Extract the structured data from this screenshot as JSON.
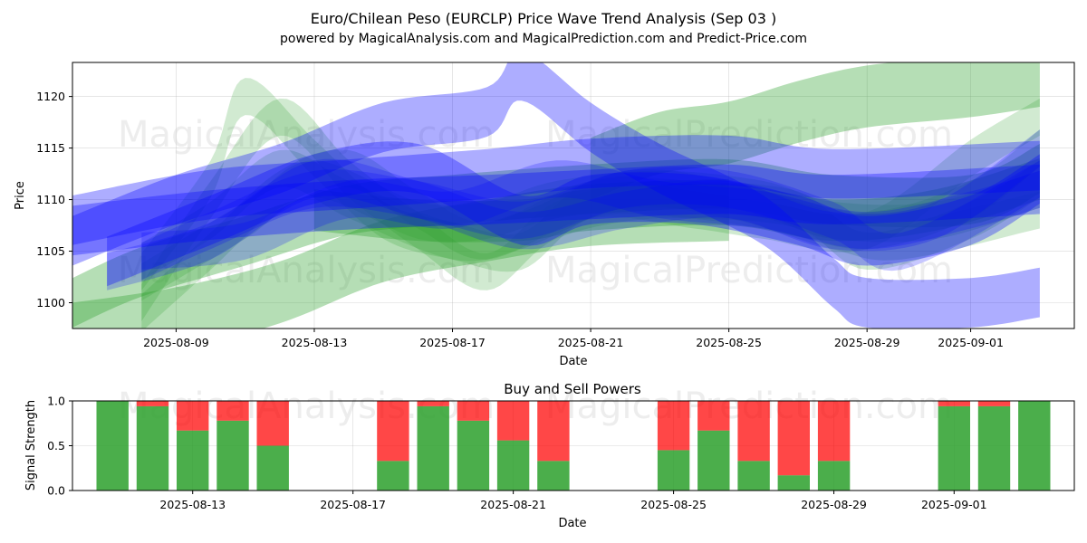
{
  "figure": {
    "title_line1": "Euro/Chilean Peso (EURCLP) Price Wave Trend Analysis (Sep 03 )",
    "title_line2": "powered by MagicalAnalysis.com and MagicalPrediction.com and Predict-Price.com",
    "watermarks": [
      "MagicalAnalysis.com",
      "MagicalPrediction.com"
    ]
  },
  "colors": {
    "green_band": "#2ca02c",
    "blue_band": "#0000ff",
    "buy": "#2ca02c",
    "sell": "#ff0000",
    "grid": "#b0b0b0"
  },
  "chart_data": [
    {
      "type": "area",
      "title": "",
      "xlabel": "Date",
      "ylabel": "Price",
      "xlim": [
        "2025-08-06",
        "2025-09-04"
      ],
      "ylim": [
        1097.5,
        1123.3
      ],
      "x_ticks": [
        "2025-08-09",
        "2025-08-13",
        "2025-08-17",
        "2025-08-21",
        "2025-08-25",
        "2025-08-29",
        "2025-09-01"
      ],
      "y_ticks": [
        1100,
        1105,
        1110,
        1115,
        1120
      ],
      "grid": true,
      "series": [
        {
          "color": "green",
          "alpha": 0.35,
          "width": 2.4,
          "points": [
            [
              "2025-08-06",
              1100
            ],
            [
              "2025-08-08",
              1103
            ],
            [
              "2025-08-11",
              1106
            ],
            [
              "2025-08-14",
              1109
            ],
            [
              "2025-08-17",
              1110
            ],
            [
              "2025-08-21",
              1111
            ],
            [
              "2025-08-25",
              1111.5
            ],
            [
              "2025-08-28",
              1110
            ],
            [
              "2025-09-01",
              1110
            ],
            [
              "2025-09-03",
              1113
            ]
          ]
        },
        {
          "color": "green",
          "alpha": 0.35,
          "width": 3.0,
          "points": [
            [
              "2025-08-06",
              1097
            ],
            [
              "2025-08-09",
              1098.5
            ],
            [
              "2025-08-12",
              1101
            ],
            [
              "2025-08-15",
              1105
            ],
            [
              "2025-08-18",
              1107
            ],
            [
              "2025-08-21",
              1108.5
            ],
            [
              "2025-08-25",
              1109
            ]
          ]
        },
        {
          "color": "green",
          "alpha": 0.35,
          "width": 3.0,
          "points": [
            [
              "2025-08-21",
              1113
            ],
            [
              "2025-08-23",
              1115.5
            ],
            [
              "2025-08-25",
              1116.5
            ],
            [
              "2025-08-27",
              1118.5
            ],
            [
              "2025-08-29",
              1120
            ],
            [
              "2025-09-01",
              1121
            ],
            [
              "2025-09-03",
              1122
            ]
          ]
        },
        {
          "color": "green",
          "alpha": 0.35,
          "width": 2.0,
          "points": [
            [
              "2025-08-13",
              1109
            ],
            [
              "2025-08-16",
              1108
            ],
            [
              "2025-08-19",
              1108
            ],
            [
              "2025-08-21",
              1109
            ],
            [
              "2025-08-25",
              1109.5
            ],
            [
              "2025-08-28",
              1108
            ],
            [
              "2025-08-31",
              1109
            ],
            [
              "2025-09-03",
              1112
            ]
          ]
        },
        {
          "color": "green",
          "alpha": 0.22,
          "width": 1.8,
          "points": [
            [
              "2025-08-08",
              1103
            ],
            [
              "2025-08-10",
              1112
            ],
            [
              "2025-08-11",
              1120
            ],
            [
              "2025-08-13",
              1114
            ],
            [
              "2025-08-15",
              1108
            ],
            [
              "2025-08-17",
              1106
            ],
            [
              "2025-08-19",
              1105
            ],
            [
              "2025-08-21",
              1110
            ],
            [
              "2025-08-24",
              1110
            ],
            [
              "2025-08-27",
              1109
            ],
            [
              "2025-08-29",
              1105
            ],
            [
              "2025-09-01",
              1108
            ],
            [
              "2025-09-03",
              1112
            ]
          ]
        },
        {
          "color": "green",
          "alpha": 0.22,
          "width": 1.8,
          "points": [
            [
              "2025-08-08",
              1100
            ],
            [
              "2025-08-10",
              1110
            ],
            [
              "2025-08-12",
              1118
            ],
            [
              "2025-08-14",
              1112
            ],
            [
              "2025-08-16",
              1107
            ],
            [
              "2025-08-18",
              1103
            ],
            [
              "2025-08-20",
              1108
            ],
            [
              "2025-08-23",
              1110
            ],
            [
              "2025-08-26",
              1109
            ],
            [
              "2025-08-29",
              1107
            ],
            [
              "2025-09-01",
              1110
            ],
            [
              "2025-09-03",
              1115
            ]
          ]
        },
        {
          "color": "green",
          "alpha": 0.22,
          "width": 1.8,
          "points": [
            [
              "2025-08-08",
              1099
            ],
            [
              "2025-08-10",
              1105
            ],
            [
              "2025-08-12",
              1111
            ],
            [
              "2025-08-14",
              1113
            ],
            [
              "2025-08-16",
              1109
            ],
            [
              "2025-08-18",
              1106
            ],
            [
              "2025-08-21",
              1110
            ],
            [
              "2025-08-24",
              1109
            ],
            [
              "2025-08-26",
              1108
            ],
            [
              "2025-08-29",
              1107
            ],
            [
              "2025-09-01",
              1114
            ],
            [
              "2025-09-03",
              1118
            ]
          ]
        },
        {
          "color": "green",
          "alpha": 0.22,
          "width": 1.8,
          "points": [
            [
              "2025-08-08",
              1102
            ],
            [
              "2025-08-11",
              1108
            ],
            [
              "2025-08-13",
              1112
            ],
            [
              "2025-08-16",
              1108
            ],
            [
              "2025-08-18",
              1108
            ],
            [
              "2025-08-20",
              1110
            ],
            [
              "2025-08-23",
              1111
            ],
            [
              "2025-08-26",
              1110
            ],
            [
              "2025-08-28",
              1108
            ],
            [
              "2025-08-31",
              1108
            ],
            [
              "2025-09-03",
              1111
            ]
          ]
        },
        {
          "color": "green",
          "alpha": 0.22,
          "width": 1.8,
          "points": [
            [
              "2025-08-08",
              1104
            ],
            [
              "2025-08-10",
              1108
            ],
            [
              "2025-08-12",
              1113
            ],
            [
              "2025-08-14",
              1110
            ],
            [
              "2025-08-17",
              1106
            ],
            [
              "2025-08-19",
              1107
            ],
            [
              "2025-08-22",
              1111
            ],
            [
              "2025-08-25",
              1110
            ],
            [
              "2025-08-28",
              1107
            ],
            [
              "2025-08-30",
              1106
            ],
            [
              "2025-09-03",
              1109
            ]
          ]
        },
        {
          "color": "blue",
          "alpha": 0.32,
          "width": 2.4,
          "points": [
            [
              "2025-08-06",
              1108
            ],
            [
              "2025-08-10",
              1110.5
            ],
            [
              "2025-08-14",
              1111.5
            ],
            [
              "2025-08-18",
              1112.5
            ],
            [
              "2025-08-21",
              1113.5
            ],
            [
              "2025-08-25",
              1113.8
            ],
            [
              "2025-08-28",
              1112.5
            ],
            [
              "2025-09-03",
              1113.3
            ]
          ]
        },
        {
          "color": "blue",
          "alpha": 0.32,
          "width": 2.4,
          "points": [
            [
              "2025-08-06",
              1106
            ],
            [
              "2025-08-09",
              1110
            ],
            [
              "2025-08-12",
              1113
            ],
            [
              "2025-08-15",
              1117
            ],
            [
              "2025-08-18",
              1118.5
            ],
            [
              "2025-08-19",
              1122
            ],
            [
              "2025-08-21",
              1117
            ],
            [
              "2025-08-23",
              1113
            ],
            [
              "2025-08-26",
              1108
            ],
            [
              "2025-08-28",
              1102
            ],
            [
              "2025-08-29",
              1100
            ],
            [
              "2025-09-01",
              1100
            ],
            [
              "2025-09-03",
              1101
            ]
          ]
        },
        {
          "color": "blue",
          "alpha": 0.32,
          "width": 2.4,
          "points": [
            [
              "2025-08-06",
              1107
            ],
            [
              "2025-08-10",
              1108.5
            ],
            [
              "2025-08-14",
              1109.5
            ],
            [
              "2025-08-18",
              1110
            ],
            [
              "2025-08-21",
              1110.5
            ],
            [
              "2025-08-25",
              1111
            ],
            [
              "2025-08-28",
              1110
            ],
            [
              "2025-09-03",
              1111
            ]
          ]
        },
        {
          "color": "blue",
          "alpha": 0.32,
          "width": 2.4,
          "points": [
            [
              "2025-08-07",
              1104
            ],
            [
              "2025-08-10",
              1108
            ],
            [
              "2025-08-13",
              1112
            ],
            [
              "2025-08-16",
              1113
            ],
            [
              "2025-08-19",
              1108
            ],
            [
              "2025-08-21",
              1110
            ],
            [
              "2025-08-24",
              1110
            ],
            [
              "2025-08-27",
              1108
            ],
            [
              "2025-08-29",
              1106
            ],
            [
              "2025-09-01",
              1108
            ],
            [
              "2025-09-03",
              1112
            ]
          ]
        },
        {
          "color": "blue",
          "alpha": 0.22,
          "width": 1.8,
          "points": [
            [
              "2025-08-08",
              1104
            ],
            [
              "2025-08-10",
              1107
            ],
            [
              "2025-08-13",
              1111
            ],
            [
              "2025-08-16",
              1110
            ],
            [
              "2025-08-19",
              1108
            ],
            [
              "2025-08-22",
              1111
            ],
            [
              "2025-08-25",
              1111
            ],
            [
              "2025-08-28",
              1108
            ],
            [
              "2025-08-30",
              1105
            ],
            [
              "2025-09-03",
              1112
            ]
          ]
        },
        {
          "color": "blue",
          "alpha": 0.22,
          "width": 1.8,
          "points": [
            [
              "2025-08-08",
              1105
            ],
            [
              "2025-08-11",
              1106
            ],
            [
              "2025-08-14",
              1110
            ],
            [
              "2025-08-17",
              1109
            ],
            [
              "2025-08-20",
              1112
            ],
            [
              "2025-08-23",
              1110
            ],
            [
              "2025-08-26",
              1109
            ],
            [
              "2025-08-29",
              1107
            ],
            [
              "2025-09-01",
              1109
            ],
            [
              "2025-09-03",
              1111
            ]
          ]
        },
        {
          "color": "blue",
          "alpha": 0.22,
          "width": 1.8,
          "points": [
            [
              "2025-08-07",
              1103
            ],
            [
              "2025-08-10",
              1106
            ],
            [
              "2025-08-13",
              1112
            ],
            [
              "2025-08-16",
              1110
            ],
            [
              "2025-08-19",
              1107
            ],
            [
              "2025-08-22",
              1109
            ],
            [
              "2025-08-25",
              1110
            ],
            [
              "2025-08-28",
              1107
            ],
            [
              "2025-08-31",
              1108
            ],
            [
              "2025-09-03",
              1115
            ]
          ]
        }
      ]
    },
    {
      "type": "bar",
      "title": "Buy and Sell Powers",
      "xlabel": "Date",
      "ylabel": "Signal Strength",
      "xlim": [
        "2025-08-10",
        "2025-09-04"
      ],
      "ylim": [
        0,
        1.0
      ],
      "x_ticks": [
        "2025-08-13",
        "2025-08-17",
        "2025-08-21",
        "2025-08-25",
        "2025-08-29",
        "2025-09-01"
      ],
      "y_ticks": [
        0.0,
        0.5,
        1.0
      ],
      "grid": true,
      "categories": [
        "2025-08-11",
        "2025-08-12",
        "2025-08-13",
        "2025-08-14",
        "2025-08-15",
        "2025-08-18",
        "2025-08-19",
        "2025-08-20",
        "2025-08-21",
        "2025-08-22",
        "2025-08-25",
        "2025-08-26",
        "2025-08-27",
        "2025-08-28",
        "2025-08-29",
        "2025-09-01",
        "2025-09-02",
        "2025-09-03"
      ],
      "series": [
        {
          "name": "buy",
          "values": [
            1.0,
            0.94,
            0.67,
            0.78,
            0.5,
            0.33,
            0.94,
            0.78,
            0.56,
            0.33,
            0.45,
            0.67,
            0.33,
            0.17,
            0.33,
            0.94,
            0.94,
            1.0
          ]
        },
        {
          "name": "sell",
          "values": [
            0.0,
            0.06,
            0.33,
            0.22,
            0.5,
            0.67,
            0.06,
            0.22,
            0.44,
            0.67,
            0.55,
            0.33,
            0.67,
            0.83,
            0.67,
            0.06,
            0.06,
            0.0
          ]
        }
      ]
    }
  ]
}
